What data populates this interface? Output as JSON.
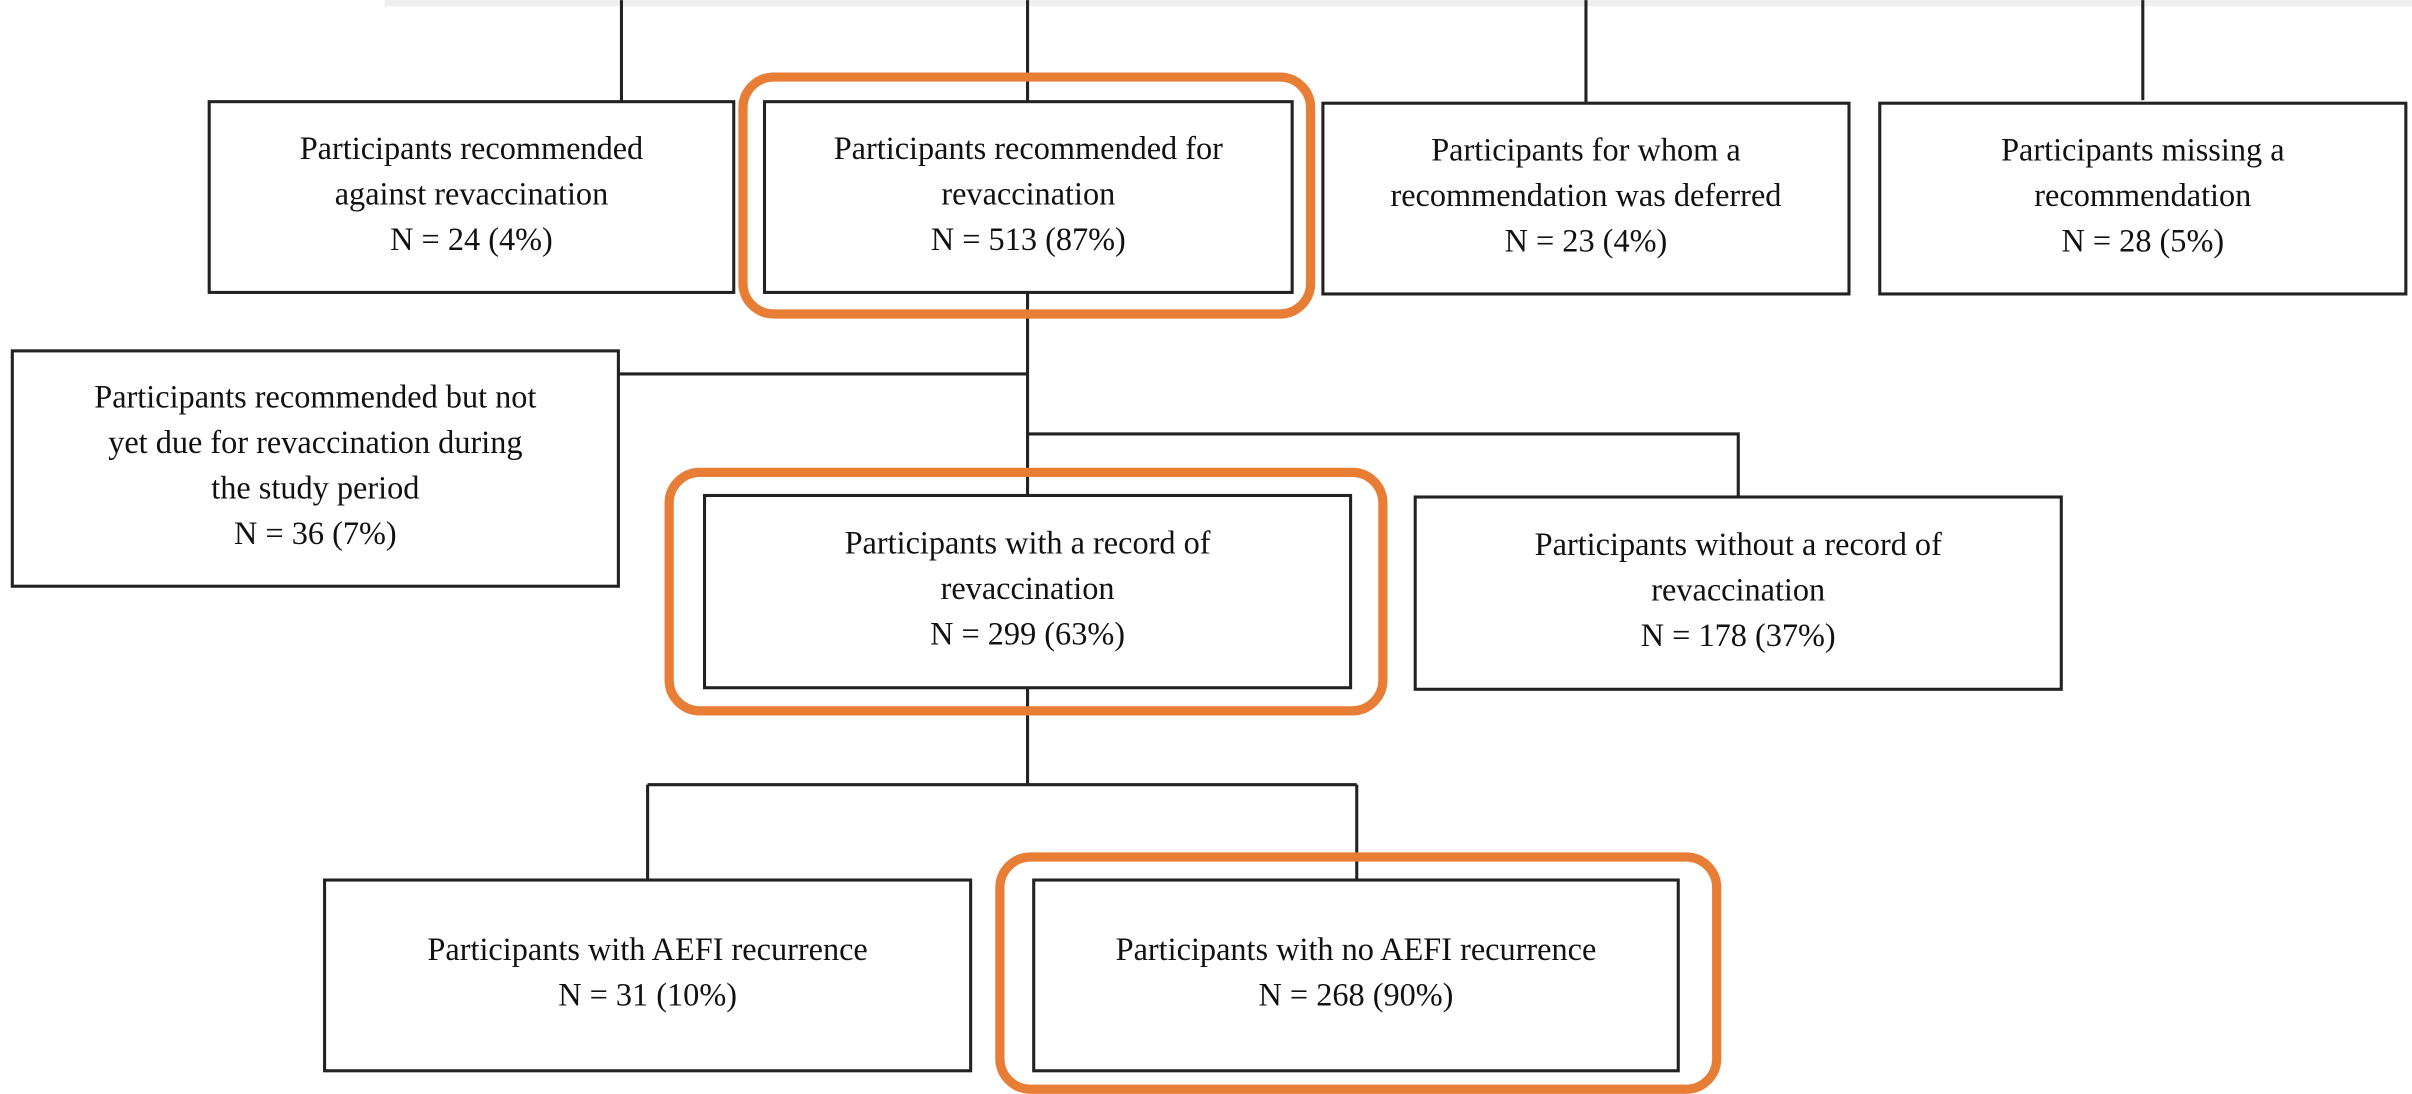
{
  "nodes": [
    {
      "lines": [
        "Participants recommended",
        "against revaccination",
        "N = 24 (4%)"
      ]
    },
    {
      "lines": [
        "Participants recommended for",
        "revaccination",
        "N = 513 (87%)"
      ]
    },
    {
      "lines": [
        "Participants for whom a",
        "recommendation was deferred",
        "N = 23 (4%)"
      ]
    },
    {
      "lines": [
        "Participants missing a",
        "recommendation",
        "N = 28 (5%)"
      ]
    },
    {
      "lines": [
        "Participants recommended but not",
        "yet due for revaccination during",
        "the study period",
        "N = 36 (7%)"
      ]
    },
    {
      "lines": [
        "Participants with a record of",
        "revaccination",
        "N = 299 (63%)"
      ]
    },
    {
      "lines": [
        "Participants without a record of",
        "revaccination",
        "N = 178 (37%)"
      ]
    },
    {
      "lines": [
        "Participants with AEFI recurrence",
        "N = 31 (10%)"
      ]
    },
    {
      "lines": [
        "Participants with no AEFI recurrence",
        "N = 268 (90%)"
      ]
    }
  ]
}
